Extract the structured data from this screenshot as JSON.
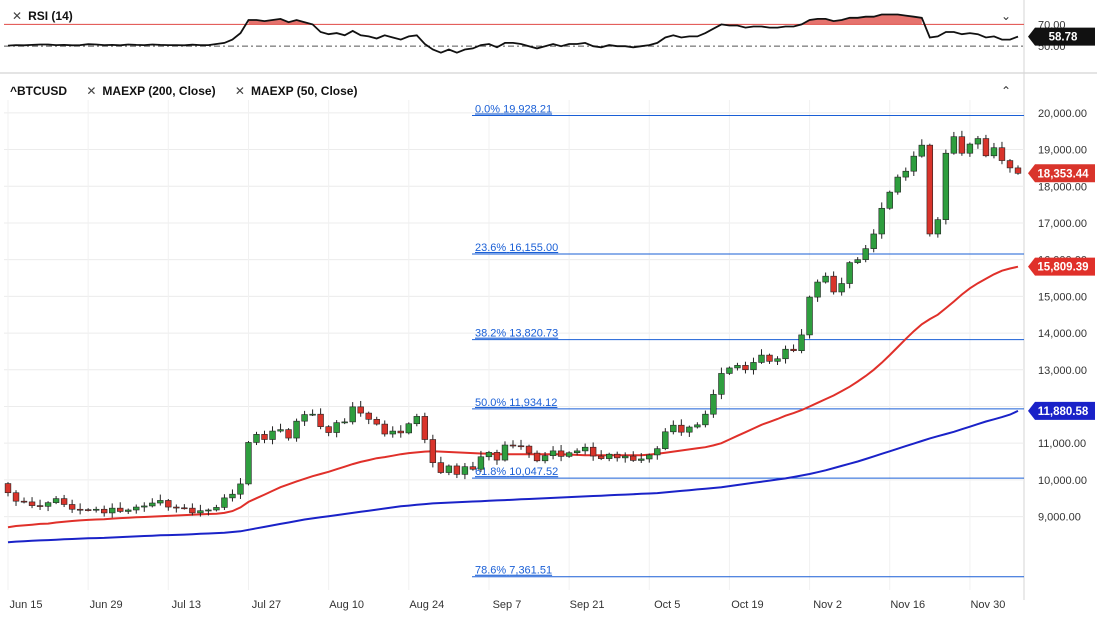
{
  "rsi_panel": {
    "label": "RSI (14)",
    "current_value": "58.78",
    "level_70": "70.00",
    "level_50": "50.00"
  },
  "price_panel": {
    "symbol": "^BTCUSD",
    "study_1": "MAEXP (200, Close)",
    "study_2": "MAEXP (50, Close)",
    "last_price": "18,353.44",
    "ema50_value": "15,809.39",
    "ema200_value": "11,880.58"
  },
  "colors": {
    "up": "#2e9e3e",
    "down": "#d9342b",
    "ema50": "#e0302a",
    "ema200": "#1a22c8",
    "fib": "#1a5fd6",
    "rsi_line": "#111111",
    "rsi_overbought_fill": "#e05b55"
  },
  "chart_data": {
    "type": "candlestick",
    "x_axis": {
      "labels": [
        "Jun 15",
        "Jun 29",
        "Jul 13",
        "Jul 27",
        "Aug 10",
        "Aug 24",
        "Sep 7",
        "Sep 21",
        "Oct 5",
        "Oct 19",
        "Nov 2",
        "Nov 16",
        "Nov 30"
      ],
      "label_index": [
        0,
        10,
        20,
        30,
        40,
        50,
        60,
        70,
        80,
        90,
        100,
        110,
        120
      ]
    },
    "y_axis": {
      "ticks": [
        "9,000.00",
        "10,000.00",
        "11,000.00",
        "12,000.00",
        "13,000.00",
        "14,000.00",
        "15,000.00",
        "16,000.00",
        "17,000.00",
        "18,000.00",
        "19,000.00",
        "20,000.00"
      ],
      "range": [
        7000,
        20350
      ]
    },
    "fibonacci": [
      {
        "label": "0.0%",
        "value": "19,928.21"
      },
      {
        "label": "23.6%",
        "value": "16,155.00"
      },
      {
        "label": "38.2%",
        "value": "13,820.73"
      },
      {
        "label": "50.0%",
        "value": "11,934.12"
      },
      {
        "label": "61.8%",
        "value": "10,047.52"
      },
      {
        "label": "78.6%",
        "value": "7,361.51"
      }
    ],
    "close": [
      9650,
      9420,
      9400,
      9300,
      9280,
      9380,
      9490,
      9330,
      9200,
      9190,
      9180,
      9200,
      9100,
      9230,
      9140,
      9180,
      9260,
      9290,
      9370,
      9440,
      9260,
      9240,
      9230,
      9100,
      9160,
      9180,
      9250,
      9510,
      9610,
      9890,
      11020,
      11240,
      11100,
      11330,
      11370,
      11140,
      11600,
      11780,
      11790,
      11450,
      11290,
      11560,
      11580,
      11990,
      11820,
      11650,
      11520,
      11250,
      11330,
      11280,
      11530,
      11730,
      11100,
      10470,
      10200,
      10380,
      10150,
      10360,
      10290,
      10630,
      10750,
      10540,
      10950,
      10930,
      10920,
      10730,
      10520,
      10660,
      10790,
      10640,
      10740,
      10790,
      10890,
      10650,
      10580,
      10700,
      10600,
      10650,
      10530,
      10570,
      10680,
      10850,
      11310,
      11490,
      11300,
      11440,
      11500,
      11790,
      12330,
      12900,
      13050,
      13120,
      13000,
      13200,
      13400,
      13230,
      13300,
      13560,
      13520,
      13950,
      14980,
      15390,
      15550,
      15120,
      15350,
      15920,
      16000,
      16300,
      16700,
      17400,
      17840,
      18250,
      18410,
      18820,
      19120,
      16700,
      17090,
      18900,
      19350,
      18900,
      19150,
      19300,
      18830,
      19050,
      18700,
      18500,
      18353
    ],
    "open_first": 9900,
    "ema50": [
      8710,
      8745,
      8760,
      8780,
      8800,
      8810,
      8840,
      8860,
      8880,
      8895,
      8910,
      8920,
      8930,
      8945,
      8960,
      8970,
      8980,
      8990,
      9000,
      9010,
      9020,
      9030,
      9040,
      9050,
      9060,
      9070,
      9080,
      9100,
      9150,
      9250,
      9400,
      9500,
      9600,
      9700,
      9800,
      9880,
      9960,
      10030,
      10100,
      10160,
      10220,
      10290,
      10360,
      10430,
      10490,
      10540,
      10590,
      10620,
      10660,
      10700,
      10730,
      10750,
      10770,
      10780,
      10770,
      10760,
      10750,
      10740,
      10730,
      10720,
      10710,
      10700,
      10700,
      10700,
      10700,
      10700,
      10700,
      10700,
      10700,
      10700,
      10690,
      10680,
      10670,
      10670,
      10670,
      10670,
      10670,
      10670,
      10670,
      10670,
      10690,
      10710,
      10740,
      10770,
      10800,
      10830,
      10860,
      10890,
      10940,
      11000,
      11100,
      11200,
      11300,
      11400,
      11500,
      11580,
      11660,
      11750,
      11820,
      11900,
      12000,
      12100,
      12200,
      12300,
      12420,
      12540,
      12680,
      12830,
      13000,
      13190,
      13400,
      13620,
      13840,
      14050,
      14240,
      14380,
      14500,
      14680,
      14860,
      15050,
      15220,
      15360,
      15480,
      15600,
      15700,
      15760,
      15809
    ],
    "ema200": [
      8300,
      8320,
      8330,
      8340,
      8350,
      8360,
      8370,
      8380,
      8390,
      8400,
      8410,
      8415,
      8420,
      8430,
      8440,
      8450,
      8460,
      8470,
      8480,
      8490,
      8495,
      8500,
      8510,
      8520,
      8530,
      8540,
      8550,
      8560,
      8580,
      8600,
      8640,
      8680,
      8720,
      8760,
      8800,
      8840,
      8880,
      8920,
      8950,
      8980,
      9010,
      9040,
      9070,
      9100,
      9130,
      9160,
      9190,
      9220,
      9250,
      9280,
      9300,
      9320,
      9340,
      9360,
      9370,
      9380,
      9390,
      9400,
      9410,
      9420,
      9430,
      9440,
      9450,
      9460,
      9470,
      9480,
      9490,
      9500,
      9510,
      9520,
      9530,
      9540,
      9550,
      9560,
      9570,
      9580,
      9590,
      9600,
      9610,
      9620,
      9630,
      9640,
      9660,
      9680,
      9700,
      9720,
      9740,
      9760,
      9780,
      9800,
      9830,
      9860,
      9890,
      9920,
      9950,
      9980,
      10010,
      10040,
      10080,
      10120,
      10160,
      10210,
      10260,
      10320,
      10380,
      10440,
      10500,
      10570,
      10640,
      10710,
      10780,
      10850,
      10920,
      10990,
      11060,
      11130,
      11190,
      11250,
      11310,
      11380,
      11450,
      11520,
      11590,
      11650,
      11710,
      11780,
      11880
    ],
    "rsi": [
      50.5,
      51,
      50.8,
      51.2,
      51.5,
      51.5,
      51,
      51.2,
      50.8,
      51,
      51.8,
      51.5,
      51,
      51.2,
      50.8,
      51.5,
      51.2,
      51,
      51.5,
      51.2,
      51,
      51,
      50.8,
      51.4,
      51,
      51,
      52,
      53,
      56,
      62,
      74,
      74,
      73,
      74,
      75,
      72,
      74,
      72,
      70,
      63,
      61,
      62,
      60,
      64,
      60,
      59,
      57,
      60,
      58,
      56,
      59,
      60,
      52,
      47,
      44,
      47,
      44,
      47,
      48,
      51,
      52,
      49,
      53,
      53,
      52,
      50,
      48,
      50,
      52,
      50,
      52,
      52,
      53,
      50,
      49,
      51,
      50,
      50,
      49,
      50,
      51,
      53,
      58,
      60,
      58,
      59,
      59,
      62,
      66,
      70,
      69,
      69,
      67,
      68,
      68,
      67,
      67,
      68,
      68,
      70,
      74,
      75,
      75,
      73,
      74,
      76,
      76,
      77,
      77,
      79,
      79,
      79,
      78,
      77,
      76,
      58,
      59,
      63,
      63,
      61,
      62,
      61,
      58,
      59,
      56,
      56,
      58.78
    ]
  }
}
